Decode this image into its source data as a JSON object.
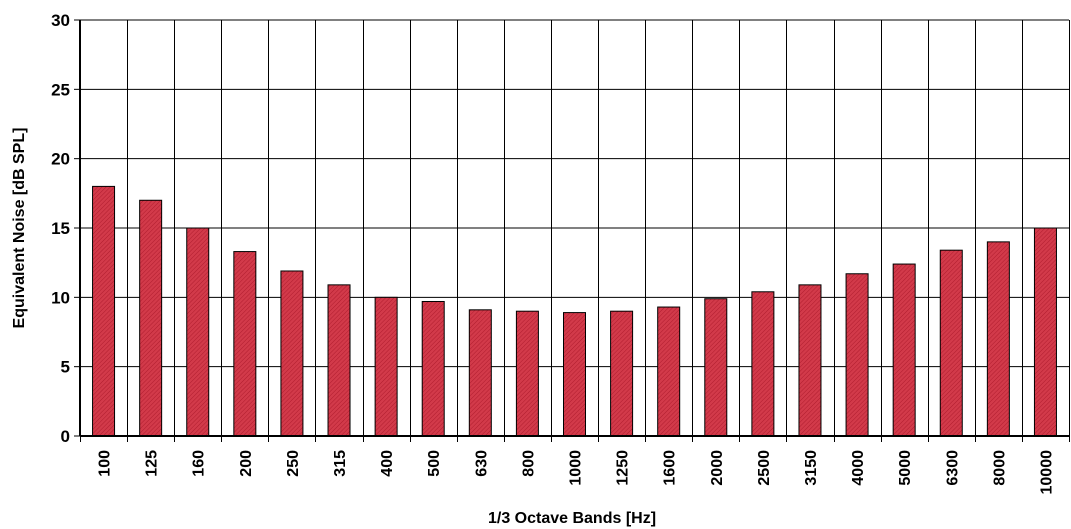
{
  "chart_data": {
    "type": "bar",
    "title": "",
    "xlabel": "1/3 Octave Bands [Hz]",
    "ylabel": "Equivalent Noise  [dB SPL]",
    "ylim": [
      0,
      30
    ],
    "yticks": [
      0,
      5,
      10,
      15,
      20,
      25,
      30
    ],
    "grid": true,
    "legend": "none",
    "bar_color": "#cc3344",
    "categories": [
      "100",
      "125",
      "160",
      "200",
      "250",
      "315",
      "400",
      "500",
      "630",
      "800",
      "1000",
      "1250",
      "1600",
      "2000",
      "2500",
      "3150",
      "4000",
      "5000",
      "6300",
      "8000",
      "10000"
    ],
    "values": [
      18,
      17,
      15,
      13.3,
      11.9,
      10.9,
      10,
      9.7,
      9.1,
      9,
      8.9,
      9,
      9.3,
      9.9,
      10.4,
      10.9,
      11.7,
      12.4,
      13.4,
      14,
      15
    ]
  }
}
